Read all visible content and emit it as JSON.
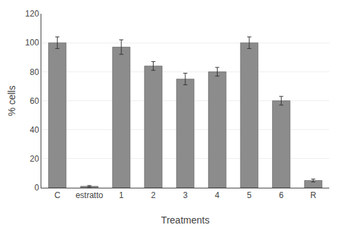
{
  "chart_data": {
    "type": "bar",
    "categories": [
      "C",
      "estratto",
      "1",
      "2",
      "3",
      "4",
      "5",
      "6",
      "R"
    ],
    "values": [
      100,
      1,
      97,
      84,
      75,
      80,
      100,
      60,
      5
    ],
    "errors": [
      4,
      0.5,
      5,
      3,
      4,
      3,
      4,
      3,
      1
    ],
    "color": "#8c8c8c",
    "xlabel": "Treatments",
    "ylabel": "% cells",
    "ylim": [
      0,
      120
    ],
    "yticks": [
      0,
      20,
      40,
      60,
      80,
      100,
      120
    ],
    "grid": true
  }
}
